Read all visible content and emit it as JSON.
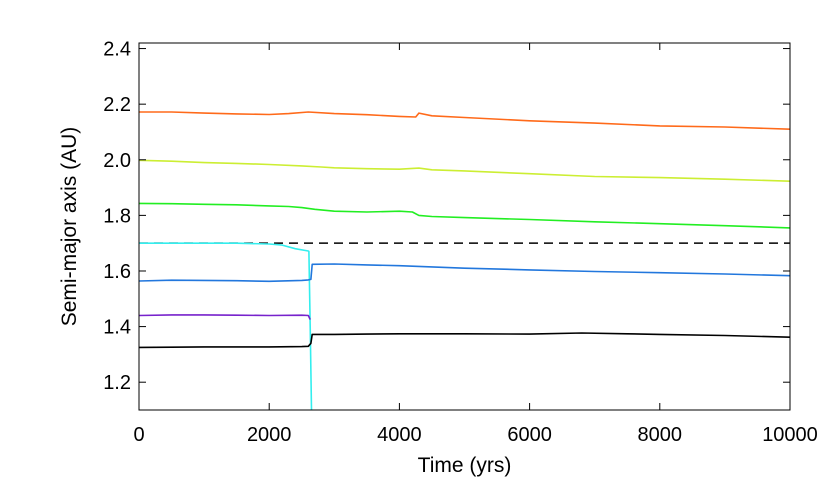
{
  "chart_data": {
    "type": "line",
    "title": "",
    "xlabel": "Time (yrs)",
    "ylabel": "Semi-major axis (AU)",
    "xlim": [
      0,
      10000
    ],
    "ylim": [
      1.1,
      2.42
    ],
    "xticks": [
      0,
      2000,
      4000,
      6000,
      8000,
      10000
    ],
    "xtick_labels": [
      "0",
      "2000",
      "4000",
      "6000",
      "8000",
      "10000"
    ],
    "yticks": [
      1.2,
      1.4,
      1.6,
      1.8,
      2.0,
      2.2,
      2.4
    ],
    "ytick_labels": [
      "1.2",
      "1.4",
      "1.6",
      "1.8",
      "2.0",
      "2.2",
      "2.4"
    ],
    "grid": false,
    "legend": "none",
    "reference_line": {
      "y": 1.7,
      "style": "dashed",
      "color": "#000000"
    },
    "series": [
      {
        "color": "#ff6a1a",
        "x": [
          0,
          500,
          1000,
          1500,
          2000,
          2300,
          2600,
          3000,
          3500,
          4000,
          4250,
          4300,
          4500,
          5000,
          6000,
          7000,
          8000,
          9000,
          10000
        ],
        "y": [
          2.172,
          2.172,
          2.168,
          2.165,
          2.163,
          2.166,
          2.172,
          2.166,
          2.162,
          2.156,
          2.154,
          2.168,
          2.158,
          2.152,
          2.14,
          2.132,
          2.122,
          2.118,
          2.11
        ]
      },
      {
        "color": "#ccee33",
        "x": [
          0,
          500,
          1000,
          1500,
          2000,
          2500,
          2800,
          3000,
          3500,
          4000,
          4300,
          4500,
          5000,
          6000,
          7000,
          8000,
          9000,
          10000
        ],
        "y": [
          1.998,
          1.995,
          1.99,
          1.987,
          1.983,
          1.978,
          1.974,
          1.971,
          1.968,
          1.966,
          1.97,
          1.964,
          1.96,
          1.95,
          1.94,
          1.936,
          1.93,
          1.923
        ]
      },
      {
        "color": "#22ee22",
        "x": [
          0,
          500,
          1000,
          1500,
          2000,
          2300,
          2500,
          2700,
          3000,
          3500,
          4000,
          4200,
          4300,
          4500,
          5000,
          6000,
          7000,
          8000,
          9000,
          10000
        ],
        "y": [
          1.843,
          1.842,
          1.84,
          1.838,
          1.834,
          1.832,
          1.828,
          1.822,
          1.815,
          1.812,
          1.815,
          1.812,
          1.8,
          1.796,
          1.792,
          1.785,
          1.777,
          1.77,
          1.763,
          1.755
        ]
      },
      {
        "color": "#33eeee",
        "x": [
          0,
          500,
          1000,
          1500,
          2000,
          2200,
          2400,
          2600,
          2610,
          2630,
          2650
        ],
        "y": [
          1.7,
          1.7,
          1.7,
          1.7,
          1.697,
          1.693,
          1.68,
          1.672,
          1.67,
          1.4,
          1.1
        ]
      },
      {
        "color": "#2277dd",
        "x": [
          0,
          500,
          1000,
          1500,
          2000,
          2500,
          2600,
          2640,
          2660,
          3000,
          3500,
          4000,
          5000,
          6000,
          7000,
          8000,
          9000,
          10000
        ],
        "y": [
          1.564,
          1.567,
          1.566,
          1.565,
          1.563,
          1.566,
          1.568,
          1.57,
          1.624,
          1.625,
          1.622,
          1.619,
          1.61,
          1.604,
          1.598,
          1.594,
          1.589,
          1.583
        ]
      },
      {
        "color": "#7722cc",
        "x": [
          0,
          500,
          1000,
          1500,
          2000,
          2500,
          2600,
          2630
        ],
        "y": [
          1.44,
          1.442,
          1.442,
          1.441,
          1.44,
          1.441,
          1.44,
          1.425
        ]
      },
      {
        "color": "#000000",
        "x": [
          0,
          500,
          1000,
          1500,
          2000,
          2500,
          2600,
          2640,
          2660,
          3000,
          3500,
          4000,
          5000,
          6000,
          6800,
          7500,
          8000,
          9000,
          10000
        ],
        "y": [
          1.325,
          1.326,
          1.327,
          1.327,
          1.327,
          1.328,
          1.329,
          1.34,
          1.372,
          1.372,
          1.373,
          1.374,
          1.374,
          1.373,
          1.377,
          1.374,
          1.372,
          1.368,
          1.362
        ]
      }
    ]
  }
}
